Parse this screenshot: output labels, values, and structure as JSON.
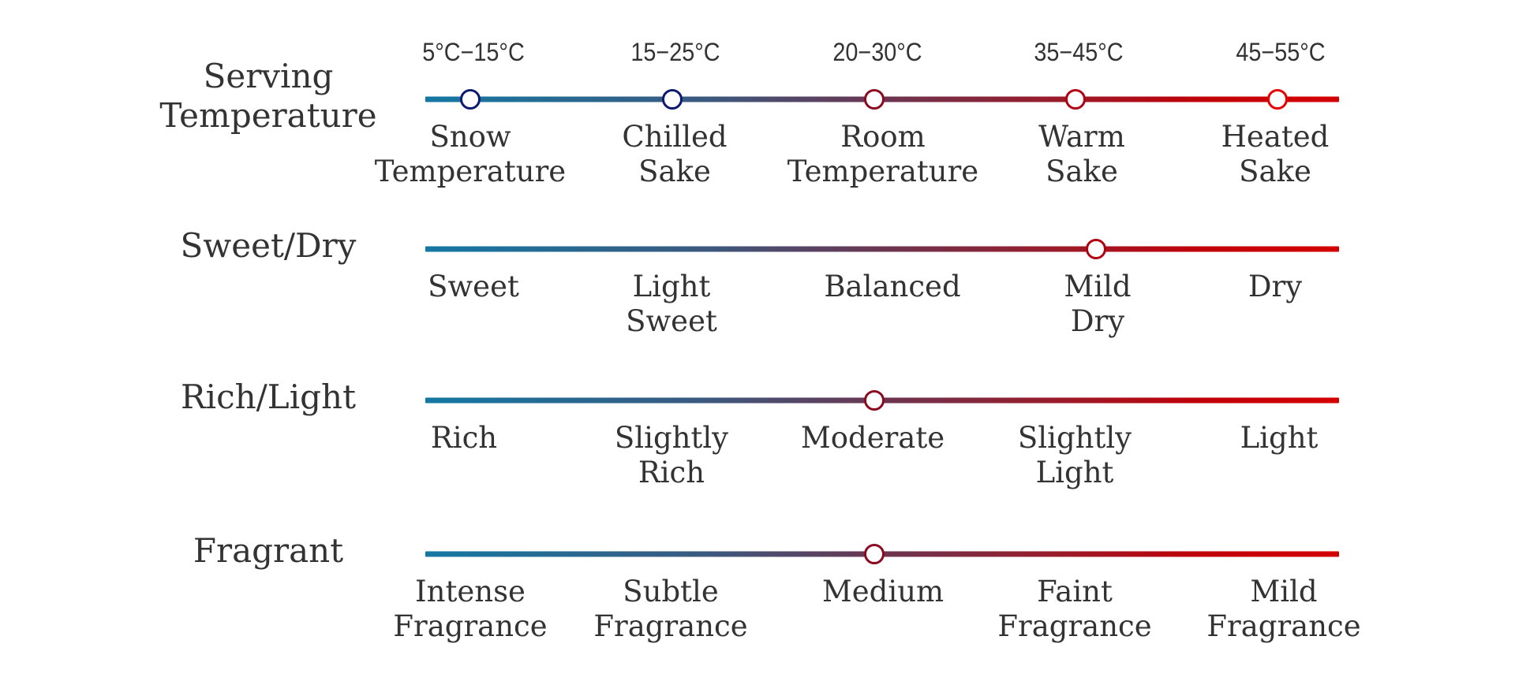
{
  "chart_data": {
    "type": "scale",
    "scale_range": [
      0,
      4
    ],
    "gradient_colors": [
      "#1478a3",
      "#6b3550",
      "#d40000"
    ],
    "rows": [
      {
        "title_lines": [
          "Serving",
          "Temperature"
        ],
        "temperature_ranges": [
          "5°C−15°C",
          "15−25°C",
          "20−30°C",
          "35−45°C",
          "45−55°C"
        ],
        "labels": [
          [
            "Snow",
            "Temperature"
          ],
          [
            "Chilled",
            "Sake"
          ],
          [
            "Room",
            "Temperature"
          ],
          [
            "Warm",
            "Sake"
          ],
          [
            "Heated",
            "Sake"
          ]
        ],
        "markers": [
          0,
          1,
          2,
          3,
          4
        ],
        "marker_colors": [
          "#0d1a70",
          "#0d1a70",
          "#8b0a20",
          "#b00012",
          "#e80000"
        ]
      },
      {
        "title_lines": [
          "Sweet/Dry"
        ],
        "labels": [
          [
            "Sweet"
          ],
          [
            "Light",
            "Sweet"
          ],
          [
            "Balanced"
          ],
          [
            "Mild",
            "Dry"
          ],
          [
            "Dry"
          ]
        ],
        "markers": [
          3.1
        ],
        "marker_colors": [
          "#b00012"
        ]
      },
      {
        "title_lines": [
          "Rich/Light"
        ],
        "labels": [
          [
            "Rich"
          ],
          [
            "Slightly",
            "Rich"
          ],
          [
            "Moderate"
          ],
          [
            "Slightly",
            "Light"
          ],
          [
            "Light"
          ]
        ],
        "markers": [
          2
        ],
        "marker_colors": [
          "#8b0a20"
        ]
      },
      {
        "title_lines": [
          "Fragrant"
        ],
        "labels": [
          [
            "Intense",
            "Fragrance"
          ],
          [
            "Subtle",
            "Fragrance"
          ],
          [
            "Medium"
          ],
          [
            "Faint",
            "Fragrance"
          ],
          [
            "Mild",
            "Fragrance"
          ]
        ],
        "markers": [
          2
        ],
        "marker_colors": [
          "#8b0a20"
        ]
      }
    ]
  }
}
